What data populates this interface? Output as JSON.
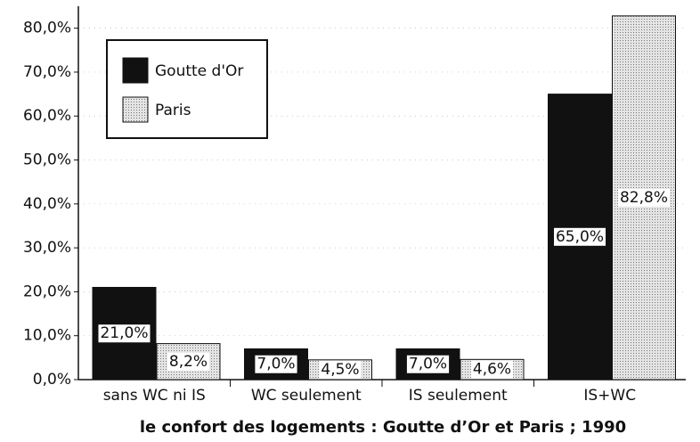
{
  "chart_data": {
    "type": "bar",
    "title": "le confort des logements : Goutte d’Or et Paris ; 1990",
    "categories": [
      "sans WC ni IS",
      "WC seulement",
      "IS seulement",
      "IS+WC"
    ],
    "series": [
      {
        "name": "Goutte d'Or",
        "color": "#111111",
        "values": [
          21.0,
          7.0,
          7.0,
          65.0
        ],
        "value_labels": [
          "21,0%",
          "7,0%",
          "7,0%",
          "65,0%"
        ]
      },
      {
        "name": "Paris",
        "color": "#cfcfcf",
        "values": [
          8.2,
          4.5,
          4.6,
          82.8
        ],
        "value_labels": [
          "8,2%",
          "4,5%",
          "4,6%",
          "82,8%"
        ]
      }
    ],
    "ylim": [
      0,
      85
    ],
    "yticks": [
      {
        "value": 0,
        "label": "0,0%"
      },
      {
        "value": 10,
        "label": "10,0%"
      },
      {
        "value": 20,
        "label": "20,0%"
      },
      {
        "value": 30,
        "label": "30,0%"
      },
      {
        "value": 40,
        "label": "40,0%"
      },
      {
        "value": 50,
        "label": "50,0%"
      },
      {
        "value": 60,
        "label": "60,0%"
      },
      {
        "value": 70,
        "label": "70,0%"
      },
      {
        "value": 80,
        "label": "80,0%"
      }
    ],
    "grid": true,
    "legend": "top-left"
  }
}
